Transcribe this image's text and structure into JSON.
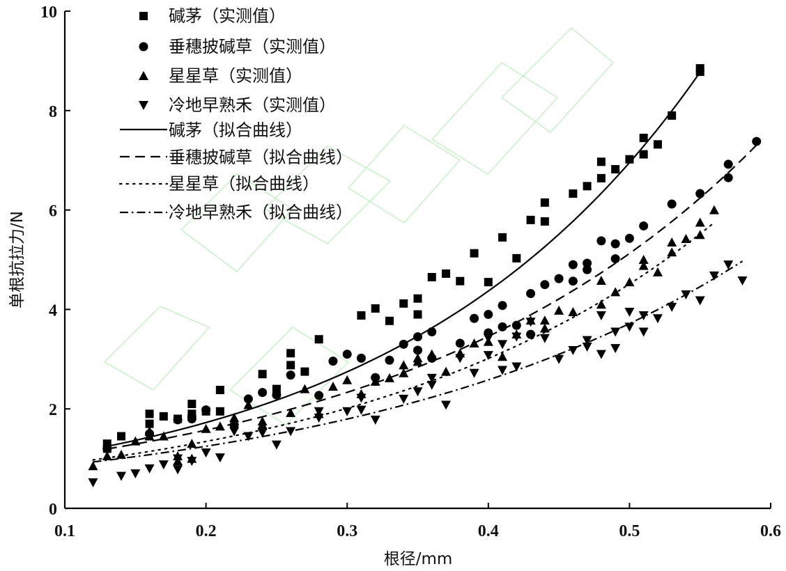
{
  "chart_data": {
    "type": "scatter",
    "xlabel": "根径/mm",
    "ylabel": "单根抗拉力/N",
    "xlim": [
      0.1,
      0.6
    ],
    "ylim": [
      0,
      10
    ],
    "x_ticks": [
      "0.1",
      "0.2",
      "0.3",
      "0.4",
      "0.5",
      "0.6"
    ],
    "y_ticks": [
      "0",
      "2",
      "4",
      "6",
      "8",
      "10"
    ],
    "x_tick_values": [
      0.1,
      0.2,
      0.3,
      0.4,
      0.5,
      0.6
    ],
    "y_tick_values": [
      0,
      2,
      4,
      6,
      8,
      10
    ],
    "grid": false,
    "legend_position": "top-left",
    "series": [
      {
        "name": "碱茅（实测值）",
        "marker": "square",
        "color": "#000000",
        "points": [
          [
            0.13,
            1.3
          ],
          [
            0.13,
            1.2
          ],
          [
            0.14,
            1.45
          ],
          [
            0.16,
            1.9
          ],
          [
            0.16,
            1.7
          ],
          [
            0.17,
            1.85
          ],
          [
            0.18,
            1.8
          ],
          [
            0.19,
            2.1
          ],
          [
            0.19,
            1.9
          ],
          [
            0.2,
            1.95
          ],
          [
            0.21,
            2.38
          ],
          [
            0.21,
            1.95
          ],
          [
            0.24,
            2.7
          ],
          [
            0.25,
            2.4
          ],
          [
            0.26,
            3.12
          ],
          [
            0.26,
            2.88
          ],
          [
            0.27,
            2.75
          ],
          [
            0.28,
            3.4
          ],
          [
            0.31,
            3.88
          ],
          [
            0.32,
            4.02
          ],
          [
            0.33,
            3.77
          ],
          [
            0.34,
            4.12
          ],
          [
            0.35,
            4.22
          ],
          [
            0.35,
            3.9
          ],
          [
            0.36,
            4.65
          ],
          [
            0.37,
            4.72
          ],
          [
            0.38,
            4.57
          ],
          [
            0.39,
            5.13
          ],
          [
            0.4,
            4.55
          ],
          [
            0.41,
            5.45
          ],
          [
            0.42,
            5.03
          ],
          [
            0.43,
            5.8
          ],
          [
            0.44,
            6.15
          ],
          [
            0.44,
            5.77
          ],
          [
            0.46,
            6.33
          ],
          [
            0.47,
            6.48
          ],
          [
            0.48,
            6.97
          ],
          [
            0.48,
            6.64
          ],
          [
            0.49,
            6.82
          ],
          [
            0.5,
            7.02
          ],
          [
            0.51,
            7.45
          ],
          [
            0.51,
            7.12
          ],
          [
            0.52,
            7.32
          ],
          [
            0.53,
            7.9
          ],
          [
            0.55,
            8.85
          ],
          [
            0.55,
            8.78
          ]
        ]
      },
      {
        "name": "垂穗披碱草（实测值）",
        "marker": "circle",
        "color": "#000000",
        "points": [
          [
            0.13,
            1.2
          ],
          [
            0.16,
            1.5
          ],
          [
            0.18,
            1.78
          ],
          [
            0.19,
            1.85
          ],
          [
            0.19,
            1.8
          ],
          [
            0.2,
            1.98
          ],
          [
            0.22,
            1.68
          ],
          [
            0.23,
            2.2
          ],
          [
            0.24,
            2.33
          ],
          [
            0.25,
            2.28
          ],
          [
            0.26,
            2.68
          ],
          [
            0.28,
            2.27
          ],
          [
            0.29,
            2.96
          ],
          [
            0.3,
            3.1
          ],
          [
            0.31,
            3.02
          ],
          [
            0.32,
            2.63
          ],
          [
            0.33,
            2.98
          ],
          [
            0.34,
            3.3
          ],
          [
            0.35,
            3.45
          ],
          [
            0.35,
            3.18
          ],
          [
            0.36,
            3.55
          ],
          [
            0.36,
            3.02
          ],
          [
            0.38,
            3.32
          ],
          [
            0.39,
            3.82
          ],
          [
            0.4,
            3.9
          ],
          [
            0.4,
            3.53
          ],
          [
            0.41,
            4.08
          ],
          [
            0.41,
            3.65
          ],
          [
            0.42,
            3.68
          ],
          [
            0.43,
            4.32
          ],
          [
            0.43,
            3.5
          ],
          [
            0.44,
            4.5
          ],
          [
            0.45,
            4.62
          ],
          [
            0.46,
            4.9
          ],
          [
            0.46,
            4.57
          ],
          [
            0.47,
            4.93
          ],
          [
            0.47,
            4.8
          ],
          [
            0.48,
            5.38
          ],
          [
            0.49,
            5.32
          ],
          [
            0.49,
            5.02
          ],
          [
            0.5,
            5.43
          ],
          [
            0.51,
            5.68
          ],
          [
            0.53,
            6.12
          ],
          [
            0.55,
            6.33
          ],
          [
            0.57,
            6.92
          ],
          [
            0.57,
            6.65
          ],
          [
            0.59,
            7.38
          ]
        ]
      },
      {
        "name": "星星草（实测值）",
        "marker": "triangle-up",
        "color": "#000000",
        "points": [
          [
            0.12,
            0.85
          ],
          [
            0.13,
            1.05
          ],
          [
            0.14,
            1.08
          ],
          [
            0.15,
            1.35
          ],
          [
            0.16,
            1.55
          ],
          [
            0.16,
            1.45
          ],
          [
            0.17,
            1.45
          ],
          [
            0.18,
            1.05
          ],
          [
            0.18,
            0.95
          ],
          [
            0.19,
            1.3
          ],
          [
            0.19,
            1.0
          ],
          [
            0.2,
            1.6
          ],
          [
            0.21,
            1.65
          ],
          [
            0.22,
            1.82
          ],
          [
            0.23,
            2.08
          ],
          [
            0.24,
            1.75
          ],
          [
            0.24,
            1.68
          ],
          [
            0.26,
            1.92
          ],
          [
            0.27,
            2.4
          ],
          [
            0.28,
            1.9
          ],
          [
            0.29,
            2.45
          ],
          [
            0.3,
            2.58
          ],
          [
            0.31,
            2.3
          ],
          [
            0.32,
            2.55
          ],
          [
            0.33,
            2.62
          ],
          [
            0.34,
            2.88
          ],
          [
            0.34,
            2.72
          ],
          [
            0.35,
            3.02
          ],
          [
            0.35,
            2.95
          ],
          [
            0.36,
            3.1
          ],
          [
            0.37,
            2.75
          ],
          [
            0.38,
            3.12
          ],
          [
            0.39,
            3.32
          ],
          [
            0.4,
            3.35
          ],
          [
            0.41,
            3.05
          ],
          [
            0.42,
            3.5
          ],
          [
            0.43,
            3.78
          ],
          [
            0.44,
            3.78
          ],
          [
            0.44,
            3.62
          ],
          [
            0.45,
            3.98
          ],
          [
            0.46,
            3.95
          ],
          [
            0.48,
            4.58
          ],
          [
            0.48,
            4.1
          ],
          [
            0.49,
            4.35
          ],
          [
            0.5,
            4.55
          ],
          [
            0.51,
            5.0
          ],
          [
            0.51,
            4.88
          ],
          [
            0.52,
            4.75
          ],
          [
            0.53,
            5.35
          ],
          [
            0.53,
            5.15
          ],
          [
            0.54,
            5.42
          ],
          [
            0.55,
            5.75
          ],
          [
            0.55,
            5.5
          ],
          [
            0.56,
            6.0
          ]
        ]
      },
      {
        "name": "冷地早熟禾（实测值）",
        "marker": "triangle-down",
        "color": "#000000",
        "points": [
          [
            0.12,
            0.52
          ],
          [
            0.14,
            0.65
          ],
          [
            0.15,
            0.7
          ],
          [
            0.16,
            0.8
          ],
          [
            0.17,
            0.88
          ],
          [
            0.18,
            1.0
          ],
          [
            0.18,
            0.78
          ],
          [
            0.19,
            0.95
          ],
          [
            0.2,
            1.12
          ],
          [
            0.21,
            1.02
          ],
          [
            0.22,
            1.55
          ],
          [
            0.23,
            1.45
          ],
          [
            0.24,
            1.52
          ],
          [
            0.25,
            1.28
          ],
          [
            0.26,
            1.55
          ],
          [
            0.28,
            1.82
          ],
          [
            0.28,
            1.95
          ],
          [
            0.3,
            1.95
          ],
          [
            0.31,
            2.22
          ],
          [
            0.31,
            1.98
          ],
          [
            0.32,
            2.55
          ],
          [
            0.32,
            1.78
          ],
          [
            0.34,
            2.2
          ],
          [
            0.35,
            2.35
          ],
          [
            0.36,
            2.62
          ],
          [
            0.36,
            2.48
          ],
          [
            0.37,
            2.08
          ],
          [
            0.38,
            3.02
          ],
          [
            0.39,
            2.72
          ],
          [
            0.4,
            3.42
          ],
          [
            0.4,
            3.08
          ],
          [
            0.41,
            3.3
          ],
          [
            0.41,
            2.78
          ],
          [
            0.42,
            3.45
          ],
          [
            0.42,
            2.85
          ],
          [
            0.43,
            3.75
          ],
          [
            0.44,
            3.42
          ],
          [
            0.45,
            3.0
          ],
          [
            0.46,
            3.18
          ],
          [
            0.47,
            3.25
          ],
          [
            0.47,
            3.38
          ],
          [
            0.48,
            3.88
          ],
          [
            0.48,
            3.1
          ],
          [
            0.49,
            3.55
          ],
          [
            0.49,
            3.22
          ],
          [
            0.5,
            3.95
          ],
          [
            0.5,
            3.65
          ],
          [
            0.51,
            3.88
          ],
          [
            0.51,
            3.55
          ],
          [
            0.52,
            3.82
          ],
          [
            0.53,
            4.05
          ],
          [
            0.54,
            4.3
          ],
          [
            0.55,
            4.18
          ],
          [
            0.56,
            4.68
          ],
          [
            0.57,
            4.9
          ],
          [
            0.58,
            4.58
          ]
        ]
      },
      {
        "name": "碱茅（拟合曲线）",
        "line_style": "solid",
        "color": "#000000",
        "x_range": [
          0.13,
          0.55
        ],
        "model": "y = a*exp(b*x)",
        "a": 0.681,
        "b": 4.647
      },
      {
        "name": "垂穗披碱草（拟合曲线）",
        "line_style": "dashed",
        "color": "#000000",
        "x_range": [
          0.13,
          0.59
        ],
        "model": "y = a*exp(b*x)",
        "a": 0.716,
        "b": 3.937
      },
      {
        "name": "星星草（拟合曲线）",
        "line_style": "dotted",
        "color": "#000000",
        "x_range": [
          0.12,
          0.56
        ],
        "model": "y = a*exp(b*x)",
        "a": 0.6,
        "b": 4.035
      },
      {
        "name": "冷地早熟禾（拟合曲线）",
        "line_style": "dashdot",
        "color": "#000000",
        "x_range": [
          0.12,
          0.58
        ],
        "model": "y = a*exp(b*x)",
        "a": 0.603,
        "b": 3.637
      }
    ]
  }
}
